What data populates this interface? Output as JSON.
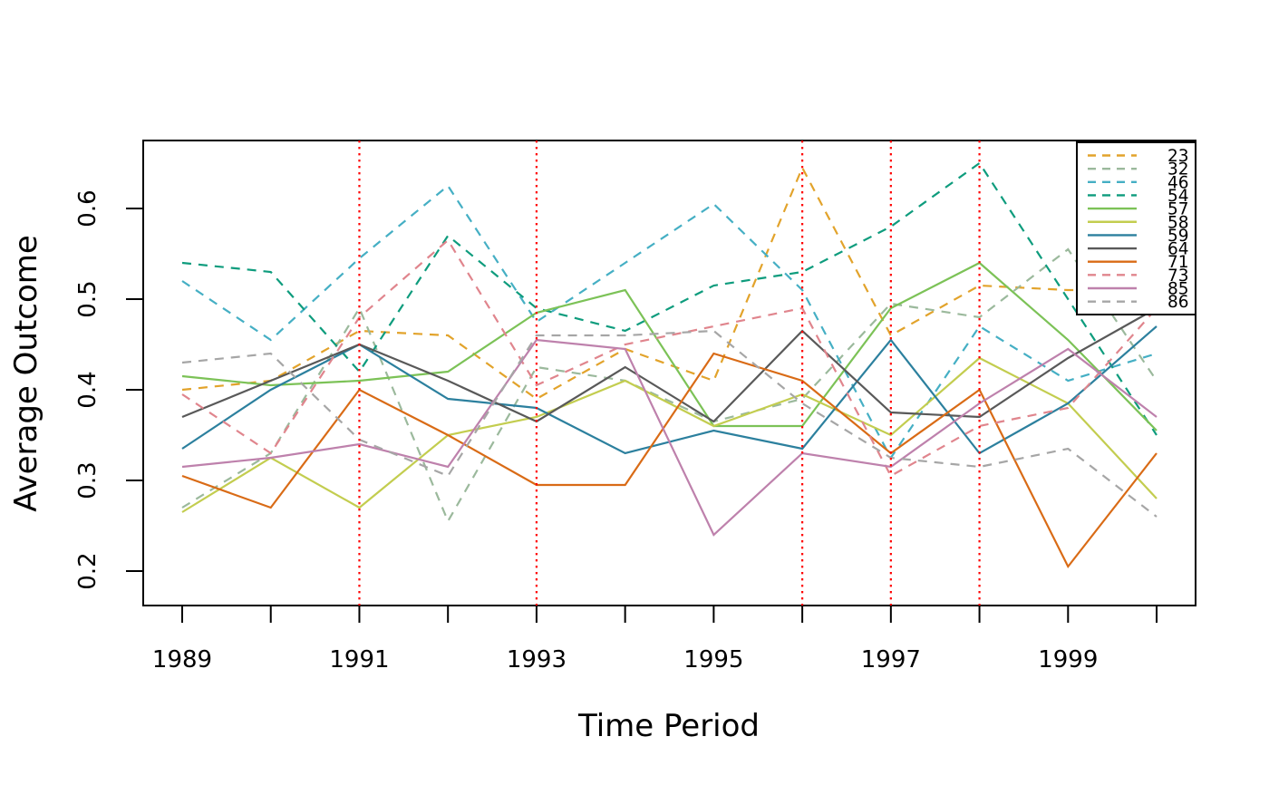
{
  "chart_data": {
    "type": "line",
    "title": "",
    "xlabel": "Time Period",
    "ylabel": "Average Outcome",
    "x": [
      1989,
      1990,
      1991,
      1992,
      1993,
      1994,
      1995,
      1996,
      1997,
      1998,
      1999,
      2000
    ],
    "x_labeled_years": [
      1989,
      1991,
      1993,
      1995,
      1997,
      1999
    ],
    "y_ticks": [
      "0.2",
      "0.3",
      "0.4",
      "0.5",
      "0.6"
    ],
    "ylim": [
      0.16,
      0.675
    ],
    "grid": false,
    "legend_position": "top-right",
    "reference_lines": {
      "orientation": "vertical",
      "style": "dotted",
      "color": "#FF0000",
      "x_years": [
        1991,
        1993,
        1996,
        1997,
        1998
      ]
    },
    "series": [
      {
        "name": "23",
        "color": "#E2A32B",
        "dashed": true,
        "values": [
          0.4,
          0.41,
          0.465,
          0.46,
          0.39,
          0.445,
          0.41,
          0.645,
          0.46,
          0.515,
          0.51,
          0.51
        ]
      },
      {
        "name": "32",
        "color": "#9BB99C",
        "dashed": true,
        "values": [
          0.27,
          0.33,
          0.49,
          0.255,
          0.425,
          0.41,
          0.365,
          0.39,
          0.495,
          0.48,
          0.555,
          0.41
        ]
      },
      {
        "name": "46",
        "color": "#45AFC4",
        "dashed": true,
        "values": [
          0.52,
          0.455,
          0.545,
          0.625,
          0.475,
          0.54,
          0.605,
          0.51,
          0.325,
          0.47,
          0.41,
          0.44
        ]
      },
      {
        "name": "54",
        "color": "#0E9C7D",
        "dashed": true,
        "values": [
          0.54,
          0.53,
          0.42,
          0.57,
          0.49,
          0.465,
          0.515,
          0.53,
          0.58,
          0.65,
          0.5,
          0.35
        ]
      },
      {
        "name": "57",
        "color": "#7CC257",
        "dashed": false,
        "values": [
          0.415,
          0.405,
          0.41,
          0.42,
          0.485,
          0.51,
          0.36,
          0.36,
          0.49,
          0.54,
          0.455,
          0.355
        ]
      },
      {
        "name": "58",
        "color": "#C3CD4F",
        "dashed": false,
        "values": [
          0.265,
          0.325,
          0.27,
          0.35,
          0.37,
          0.41,
          0.36,
          0.395,
          0.35,
          0.435,
          0.385,
          0.28
        ]
      },
      {
        "name": "59",
        "color": "#2C809E",
        "dashed": false,
        "values": [
          0.335,
          0.4,
          0.45,
          0.39,
          0.38,
          0.33,
          0.355,
          0.335,
          0.455,
          0.33,
          0.385,
          0.47
        ]
      },
      {
        "name": "64",
        "color": "#595959",
        "dashed": false,
        "values": [
          0.37,
          0.41,
          0.45,
          0.41,
          0.365,
          0.425,
          0.365,
          0.465,
          0.375,
          0.37,
          0.435,
          0.49
        ]
      },
      {
        "name": "71",
        "color": "#D96B16",
        "dashed": false,
        "values": [
          0.305,
          0.27,
          0.4,
          0.35,
          0.295,
          0.295,
          0.44,
          0.41,
          0.33,
          0.4,
          0.205,
          0.33
        ]
      },
      {
        "name": "73",
        "color": "#E0858D",
        "dashed": true,
        "values": [
          0.395,
          0.33,
          0.48,
          0.565,
          0.405,
          0.45,
          0.47,
          0.49,
          0.305,
          0.36,
          0.38,
          0.49
        ]
      },
      {
        "name": "85",
        "color": "#BE81AC",
        "dashed": false,
        "values": [
          0.315,
          0.325,
          0.34,
          0.315,
          0.455,
          0.445,
          0.24,
          0.33,
          0.315,
          0.385,
          0.445,
          0.37
        ]
      },
      {
        "name": "86",
        "color": "#A6A6A6",
        "dashed": true,
        "values": [
          0.43,
          0.44,
          0.345,
          0.305,
          0.46,
          0.46,
          0.465,
          0.385,
          0.325,
          0.315,
          0.335,
          0.26
        ]
      }
    ]
  }
}
